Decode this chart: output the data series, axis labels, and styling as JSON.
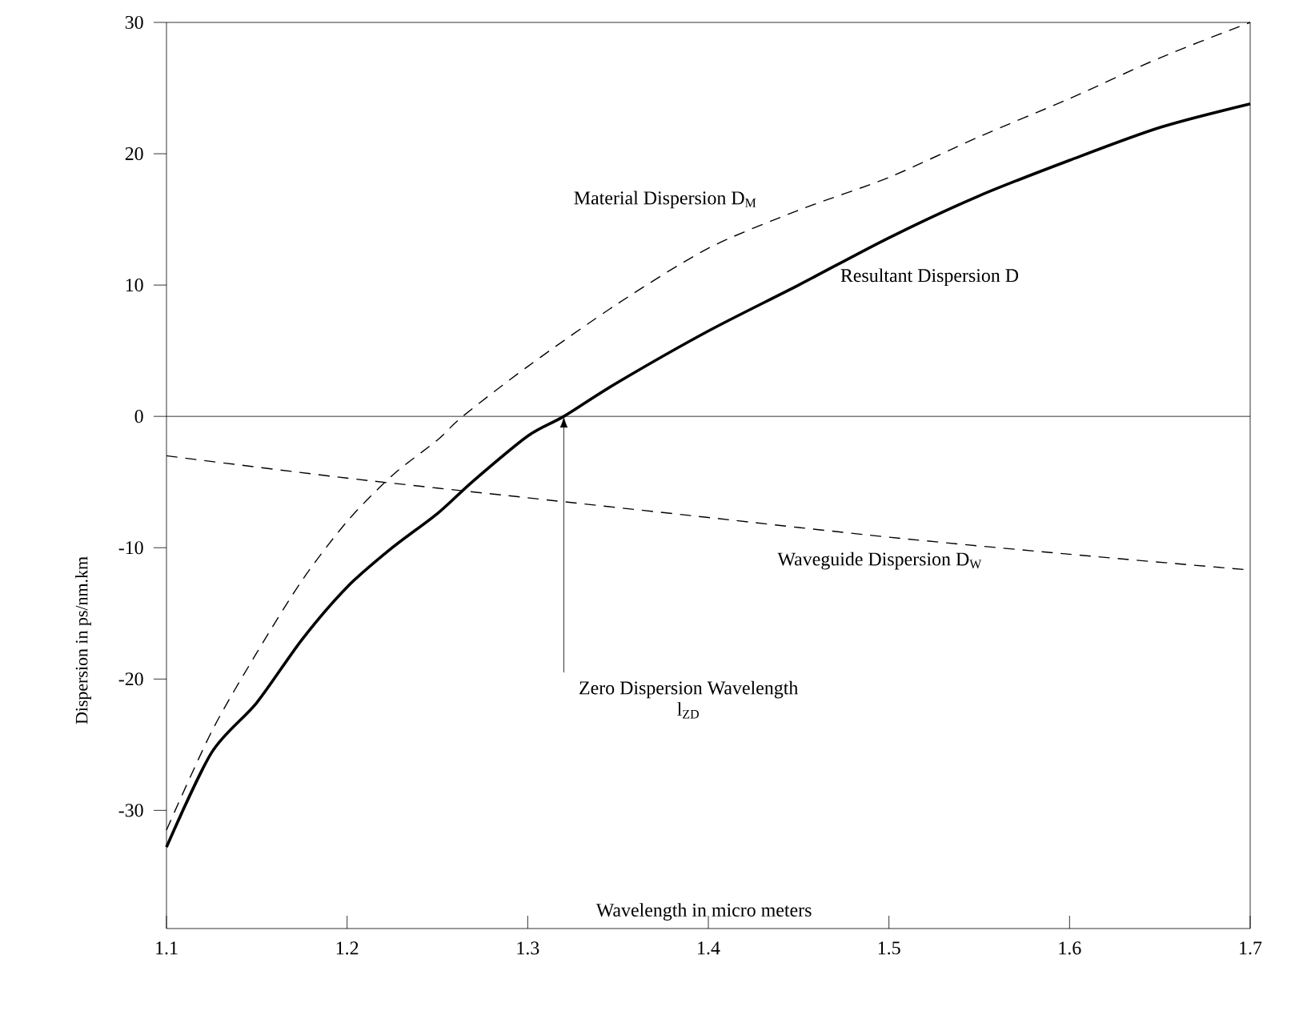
{
  "chart_data": {
    "type": "line",
    "xlabel": "Wavelength in micro meters",
    "ylabel": "Dispersion in ps/nm.km",
    "xlim": [
      1.1,
      1.7
    ],
    "ylim": [
      -39,
      30
    ],
    "xticks": [
      1.1,
      1.2,
      1.3,
      1.4,
      1.5,
      1.6,
      1.7
    ],
    "yticks": [
      -30,
      -20,
      -10,
      0,
      10,
      20,
      30
    ],
    "marker": "none",
    "grid": false,
    "ref_lines": [
      {
        "axis": "y",
        "value": 0
      }
    ],
    "series": [
      {
        "name": "Material Dispersion D$_{M}$",
        "color": "#000000",
        "line_style": "dashed",
        "x": [
          1.1,
          1.125,
          1.15,
          1.175,
          1.2,
          1.225,
          1.25,
          1.264,
          1.3,
          1.35,
          1.4,
          1.45,
          1.5,
          1.55,
          1.6,
          1.65,
          1.7
        ],
        "values": [
          -31.5,
          -24,
          -18,
          -12.5,
          -8,
          -4.5,
          -1.8,
          0,
          3.8,
          8.6,
          12.8,
          15.7,
          18.2,
          21.3,
          24.2,
          27.3,
          30
        ]
      },
      {
        "name": "Resultant Dispersion D",
        "color": "#000000",
        "line_style": "solid",
        "x": [
          1.1,
          1.125,
          1.15,
          1.175,
          1.2,
          1.225,
          1.25,
          1.27,
          1.3,
          1.32,
          1.35,
          1.4,
          1.45,
          1.5,
          1.55,
          1.6,
          1.65,
          1.7
        ],
        "values": [
          -32.8,
          -25.6,
          -21.8,
          -17,
          -13,
          -10,
          -7.4,
          -4.9,
          -1.5,
          0,
          2.6,
          6.5,
          10,
          13.6,
          16.8,
          19.5,
          22,
          23.8
        ]
      },
      {
        "name": "Waveguide Dispersion D$_{W}$",
        "color": "#000000",
        "line_style": "dashed",
        "x": [
          1.1,
          1.2,
          1.3,
          1.4,
          1.5,
          1.6,
          1.7
        ],
        "values": [
          -3,
          -4.7,
          -6.2,
          -7.7,
          -9.2,
          -10.5,
          -11.7
        ]
      }
    ],
    "annotations": [
      {
        "text": "Zero Dispersion Wavelength",
        "x": 1.32,
        "y": 0
      },
      "l$_{ZD}$"
    ]
  }
}
